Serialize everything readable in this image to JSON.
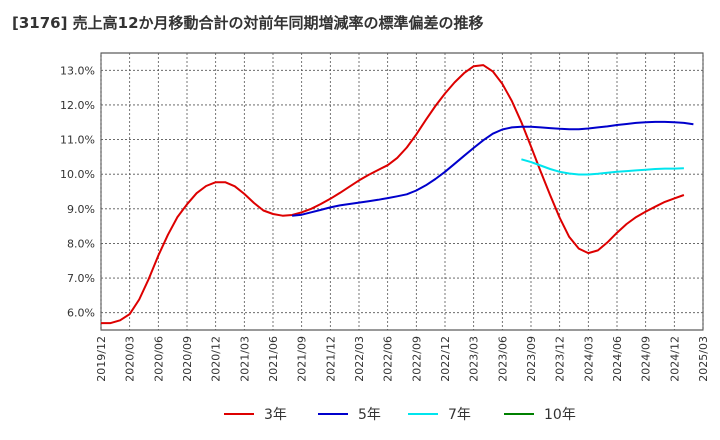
{
  "chart_data": {
    "type": "line",
    "title": "[3176]  売上高12か月移動合計の対前年同期増減率の標準偏差の推移",
    "xlabel": "",
    "ylabel": "",
    "ylim": [
      5.5,
      13.5
    ],
    "yticks": [
      6.0,
      7.0,
      8.0,
      9.0,
      10.0,
      11.0,
      12.0,
      13.0
    ],
    "ytick_labels": [
      "6.0%",
      "7.0%",
      "8.0%",
      "9.0%",
      "10.0%",
      "11.0%",
      "12.0%",
      "13.0%"
    ],
    "xticks": [
      "2019/12",
      "2020/03",
      "2020/06",
      "2020/09",
      "2020/12",
      "2021/03",
      "2021/06",
      "2021/09",
      "2021/12",
      "2022/03",
      "2022/06",
      "2022/09",
      "2022/12",
      "2023/03",
      "2023/06",
      "2023/09",
      "2023/12",
      "2024/03",
      "2024/06",
      "2024/09",
      "2024/12",
      "2025/03"
    ],
    "x_start": "2019/12",
    "grid": true,
    "legend_position": "bottom",
    "series": [
      {
        "name": "3年",
        "color": "#dd0000",
        "start": "2019/12",
        "values": [
          5.7,
          5.7,
          5.78,
          5.96,
          6.38,
          6.98,
          7.65,
          8.25,
          8.76,
          9.13,
          9.45,
          9.66,
          9.77,
          9.77,
          9.65,
          9.43,
          9.17,
          8.95,
          8.85,
          8.8,
          8.82,
          8.9,
          9.0,
          9.14,
          9.29,
          9.46,
          9.64,
          9.82,
          9.98,
          10.12,
          10.26,
          10.47,
          10.77,
          11.15,
          11.57,
          11.97,
          12.33,
          12.65,
          12.92,
          13.12,
          13.15,
          12.97,
          12.61,
          12.11,
          11.5,
          10.8,
          10.08,
          9.4,
          8.74,
          8.19,
          7.85,
          7.72,
          7.8,
          8.03,
          8.31,
          8.56,
          8.76,
          8.92,
          9.06,
          9.2,
          9.3,
          9.4
        ]
      },
      {
        "name": "5年",
        "color": "#0000cc",
        "start": "2021/08",
        "values": [
          8.8,
          8.83,
          8.9,
          8.97,
          9.04,
          9.1,
          9.14,
          9.18,
          9.22,
          9.26,
          9.31,
          9.36,
          9.42,
          9.53,
          9.68,
          9.86,
          10.07,
          10.3,
          10.53,
          10.76,
          10.98,
          11.17,
          11.29,
          11.35,
          11.37,
          11.37,
          11.35,
          11.33,
          11.31,
          11.3,
          11.3,
          11.32,
          11.35,
          11.38,
          11.42,
          11.45,
          11.48,
          11.5,
          11.51,
          11.51,
          11.5,
          11.48,
          11.44
        ]
      },
      {
        "name": "7年",
        "color": "#00e5ee",
        "start": "2023/08",
        "values": [
          10.43,
          10.35,
          10.25,
          10.15,
          10.07,
          10.02,
          9.99,
          9.99,
          10.01,
          10.04,
          10.07,
          10.09,
          10.11,
          10.13,
          10.15,
          10.16,
          10.16,
          10.17
        ]
      },
      {
        "name": "10年",
        "color": "#008000",
        "start": "2019/12",
        "values": []
      }
    ]
  }
}
